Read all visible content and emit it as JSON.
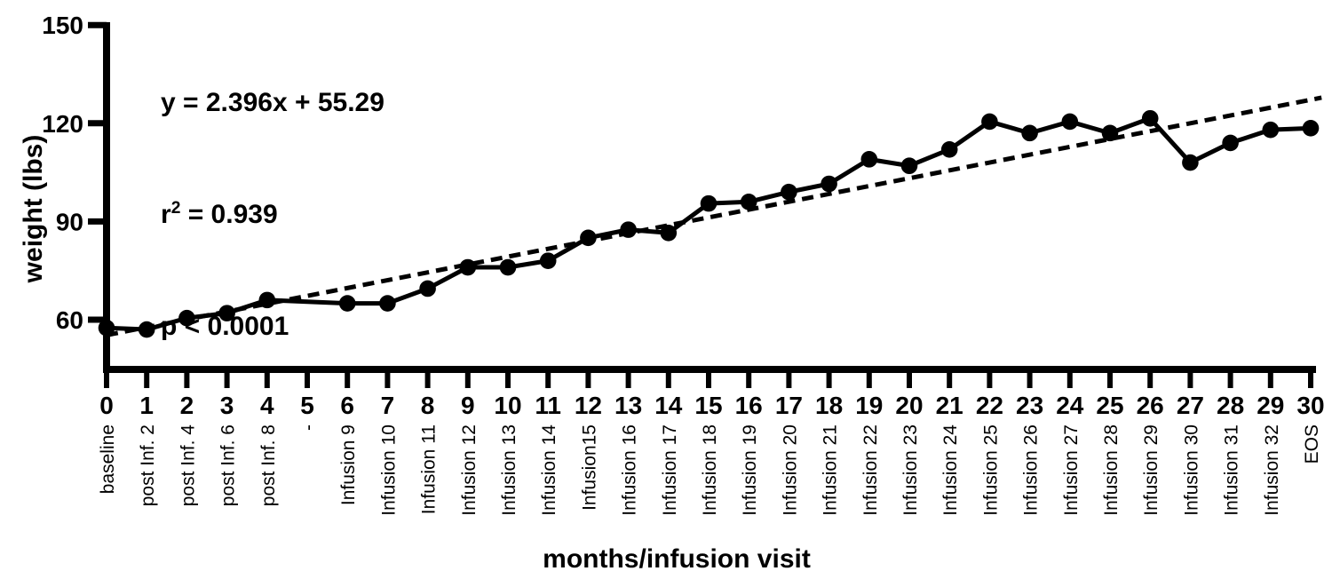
{
  "annotation": {
    "equation": "y = 2.396x + 55.29",
    "r2_base": "r",
    "r2_exp": "2",
    "r2_value": " = 0.939",
    "p_value": "p < 0.0001"
  },
  "chart_data": {
    "type": "scatter-line",
    "title": "",
    "xlabel": "months/infusion visit",
    "ylabel": "weight (lbs)",
    "xlim": [
      0,
      30.4
    ],
    "ylim": [
      47,
      150
    ],
    "grid": false,
    "legend": "none",
    "line_color": "#000000",
    "y_ticks": [
      60,
      90,
      120,
      150
    ],
    "x_ticks": [
      0,
      1,
      2,
      3,
      4,
      5,
      6,
      7,
      8,
      9,
      10,
      11,
      12,
      13,
      14,
      15,
      16,
      17,
      18,
      19,
      20,
      21,
      22,
      23,
      24,
      25,
      26,
      27,
      28,
      29,
      30
    ],
    "x_tick_visit_labels": [
      "baseline",
      "post Inf. 2",
      "post Inf. 4",
      "post Inf. 6",
      "post Inf. 8",
      "-",
      "Infusion 9",
      "Infusion 10",
      "Infusion 11",
      "Infusion 12",
      "Infusion 13",
      "Infusion 14",
      "Infusion15",
      "Infusion 16",
      "Infusion 17",
      "Infusion 18",
      "Infusion 19",
      "Infusion 20",
      "Infusion 21",
      "Infusion 22",
      "Infusion 23",
      "Infusion 24",
      "Infusion 25",
      "Infusion 26",
      "Infusion 27",
      "Infusion 28",
      "Infusion 29",
      "Infusion 30",
      "Infusion 31",
      "Infusion 32",
      "EOS"
    ],
    "series": [
      {
        "name": "weight (lbs)",
        "marker": "circle",
        "color": "#000000",
        "points": [
          {
            "x": 0,
            "y": 57.5
          },
          {
            "x": 1,
            "y": 57
          },
          {
            "x": 2,
            "y": 60.5
          },
          {
            "x": 3,
            "y": 62
          },
          {
            "x": 4,
            "y": 66
          },
          {
            "x": 6,
            "y": 65
          },
          {
            "x": 7,
            "y": 65
          },
          {
            "x": 8,
            "y": 69.5
          },
          {
            "x": 9,
            "y": 76
          },
          {
            "x": 10,
            "y": 76
          },
          {
            "x": 11,
            "y": 78
          },
          {
            "x": 12,
            "y": 85
          },
          {
            "x": 13,
            "y": 87.5
          },
          {
            "x": 14,
            "y": 86.5
          },
          {
            "x": 15,
            "y": 95.5
          },
          {
            "x": 16,
            "y": 96
          },
          {
            "x": 17,
            "y": 99
          },
          {
            "x": 18,
            "y": 101.5
          },
          {
            "x": 19,
            "y": 109
          },
          {
            "x": 20,
            "y": 107
          },
          {
            "x": 21,
            "y": 112
          },
          {
            "x": 22,
            "y": 120.5
          },
          {
            "x": 23,
            "y": 117
          },
          {
            "x": 24,
            "y": 120.5
          },
          {
            "x": 25,
            "y": 117
          },
          {
            "x": 26,
            "y": 121.5
          },
          {
            "x": 27,
            "y": 108
          },
          {
            "x": 28,
            "y": 114
          },
          {
            "x": 29,
            "y": 118
          },
          {
            "x": 30,
            "y": 118.5
          }
        ]
      }
    ],
    "trend": {
      "type": "linear",
      "style": "dashed",
      "color": "#000000",
      "slope": 2.396,
      "intercept": 55.29,
      "x_start": 0,
      "x_end": 30.27,
      "r2": 0.939,
      "p": "< 0.0001"
    }
  }
}
